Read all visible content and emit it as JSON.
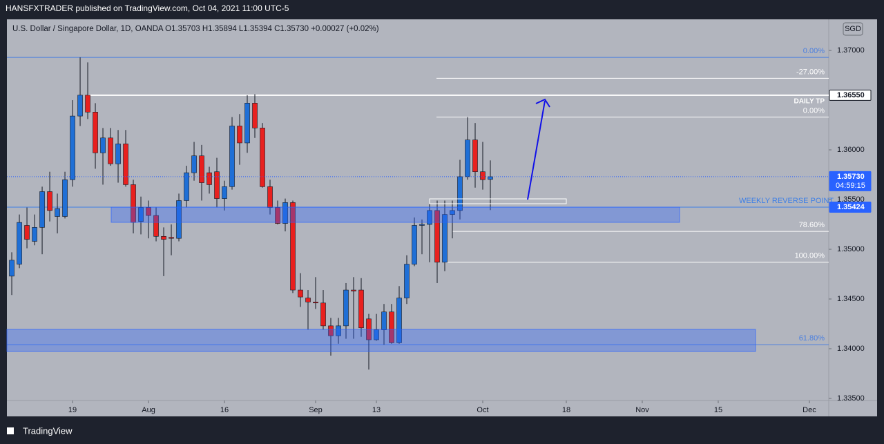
{
  "page": {
    "published": "HANSFXTRADER published on TradingView.com, Oct 04, 2021 11:00 UTC-5",
    "legend": "U.S. Dollar / Singapore Dollar, 1D, OANDA  O1.35703  H1.35894  L1.35394  C1.35730  +0.00027 (+0.02%)",
    "currency": "SGD",
    "brand": "TradingView"
  },
  "chart_data": {
    "type": "candlestick",
    "up_color": "#1f6fd6",
    "down_color": "#e8201e",
    "open": [
      1.3473,
      1.3485,
      1.3524,
      1.3508,
      1.3522,
      1.3558,
      1.3533,
      1.3533,
      1.357,
      1.3634,
      1.3655,
      1.3638,
      1.3597,
      1.3612,
      1.3586,
      1.3606,
      1.3565,
      1.3528,
      1.3542,
      1.3534,
      1.3513,
      1.3512,
      1.3511,
      1.3549,
      1.3577,
      1.3594,
      1.3577,
      1.3578,
      1.3551,
      1.3563,
      1.3624,
      1.3607,
      1.3647,
      1.3622,
      1.3563,
      1.3542,
      1.3526,
      1.3547,
      1.3459,
      1.3451,
      1.3447,
      1.3446,
      1.3423,
      1.3413,
      1.3423,
      1.3459,
      1.3459,
      1.343,
      1.3409,
      1.3419,
      1.3437,
      1.3406,
      1.3451,
      1.3485,
      1.3524,
      1.3525,
      1.3539,
      1.3487,
      1.3535,
      1.3539,
      1.3573,
      1.361,
      1.3578,
      1.35703
    ],
    "high": [
      1.3497,
      1.3535,
      1.3542,
      1.3535,
      1.3563,
      1.3578,
      1.3556,
      1.3578,
      1.365,
      1.3693,
      1.3688,
      1.3647,
      1.3622,
      1.3622,
      1.362,
      1.362,
      1.357,
      1.3553,
      1.3549,
      1.3542,
      1.3522,
      1.3525,
      1.3556,
      1.3584,
      1.3608,
      1.3605,
      1.3583,
      1.3592,
      1.3569,
      1.3633,
      1.3636,
      1.3655,
      1.3656,
      1.3627,
      1.357,
      1.3549,
      1.3551,
      1.3549,
      1.3476,
      1.3459,
      1.3472,
      1.3459,
      1.3431,
      1.3431,
      1.3466,
      1.3472,
      1.3471,
      1.3435,
      1.3435,
      1.3445,
      1.3445,
      1.3463,
      1.3494,
      1.3532,
      1.353,
      1.3551,
      1.3549,
      1.3549,
      1.3549,
      1.359,
      1.3633,
      1.3627,
      1.3608,
      1.35894
    ],
    "low": [
      1.3454,
      1.3481,
      1.3501,
      1.3504,
      1.3495,
      1.3528,
      1.3516,
      1.3531,
      1.3563,
      1.3624,
      1.3631,
      1.3581,
      1.3565,
      1.3584,
      1.3567,
      1.3563,
      1.3516,
      1.3515,
      1.3511,
      1.3508,
      1.3473,
      1.3494,
      1.3508,
      1.3542,
      1.3569,
      1.3549,
      1.3556,
      1.3542,
      1.3539,
      1.356,
      1.3585,
      1.3597,
      1.3612,
      1.3562,
      1.3535,
      1.3525,
      1.3518,
      1.3456,
      1.3442,
      1.3419,
      1.344,
      1.3419,
      1.3393,
      1.3405,
      1.341,
      1.341,
      1.3412,
      1.3379,
      1.3408,
      1.3404,
      1.3405,
      1.3405,
      1.3445,
      1.3483,
      1.3495,
      1.3487,
      1.3466,
      1.3478,
      1.3511,
      1.353,
      1.357,
      1.3562,
      1.356,
      1.35394
    ],
    "close": [
      1.3489,
      1.3527,
      1.351,
      1.3522,
      1.3558,
      1.3539,
      1.3541,
      1.357,
      1.3634,
      1.3655,
      1.3638,
      1.3597,
      1.3612,
      1.3586,
      1.3606,
      1.3565,
      1.3527,
      1.3542,
      1.3534,
      1.3513,
      1.351,
      1.3511,
      1.3549,
      1.3577,
      1.3594,
      1.3567,
      1.3565,
      1.3551,
      1.3563,
      1.3624,
      1.3607,
      1.3647,
      1.3622,
      1.3563,
      1.3542,
      1.3526,
      1.3547,
      1.3459,
      1.3452,
      1.3447,
      1.3446,
      1.3423,
      1.3413,
      1.3423,
      1.3459,
      1.3458,
      1.3421,
      1.3409,
      1.3419,
      1.3437,
      1.3406,
      1.3451,
      1.3485,
      1.3524,
      1.3525,
      1.3539,
      1.3487,
      1.3535,
      1.3539,
      1.3573,
      1.361,
      1.3578,
      1.357,
      1.3573
    ],
    "xlim": [
      -0.64,
      107.55
    ],
    "xticks": [
      {
        "value": 8,
        "label": "19"
      },
      {
        "value": 18,
        "label": "Aug"
      },
      {
        "value": 28,
        "label": "16"
      },
      {
        "value": 40,
        "label": "Sep"
      },
      {
        "value": 48,
        "label": "13"
      },
      {
        "value": 62,
        "label": "Oct"
      },
      {
        "value": 73,
        "label": "18"
      },
      {
        "value": 83,
        "label": "Nov"
      },
      {
        "value": 93,
        "label": "15"
      },
      {
        "value": 105,
        "label": "Dec"
      }
    ],
    "ylim": [
      1.33479,
      1.37313
    ],
    "yticks": [
      {
        "value": 1.37,
        "label": "1.37000"
      },
      {
        "value": 1.36,
        "label": "1.36000"
      },
      {
        "value": 1.355,
        "label": "1.35500"
      },
      {
        "value": 1.35,
        "label": "1.35000"
      },
      {
        "value": 1.345,
        "label": "1.34500"
      },
      {
        "value": 1.34,
        "label": "1.34000"
      },
      {
        "value": 1.335,
        "label": "1.33500"
      }
    ],
    "levels": [
      {
        "label": "0.00%",
        "value": 1.3693,
        "color": "#4a7fe0"
      },
      {
        "label": "-27.00%",
        "value": 1.3672,
        "color": "#ffffff"
      },
      {
        "label": "DAILY TP",
        "value": 1.3655,
        "color": "#ffffff"
      },
      {
        "label": "0.00%",
        "value": 1.3633,
        "color": "#ffffff"
      },
      {
        "label": "WEEKLY REVERSE POINT",
        "value": 1.35424,
        "color": "#3d7fe6"
      },
      {
        "label": "78.60%",
        "value": 1.3518,
        "color": "#ffffff"
      },
      {
        "label": "100.00%",
        "value": 1.3487,
        "color": "#ffffff"
      },
      {
        "label": "61.80%",
        "value": 1.3404,
        "color": "#4a7fe0"
      }
    ],
    "price_marks": [
      {
        "value": 1.3655,
        "label": "1.36550",
        "color": "#ffffff"
      },
      {
        "value": 1.3573,
        "label": "1.35730",
        "color": "#2962ff",
        "countdown": "04:59:15"
      },
      {
        "value": 1.35424,
        "label": "1.35424",
        "color": "#2962ff"
      }
    ]
  }
}
